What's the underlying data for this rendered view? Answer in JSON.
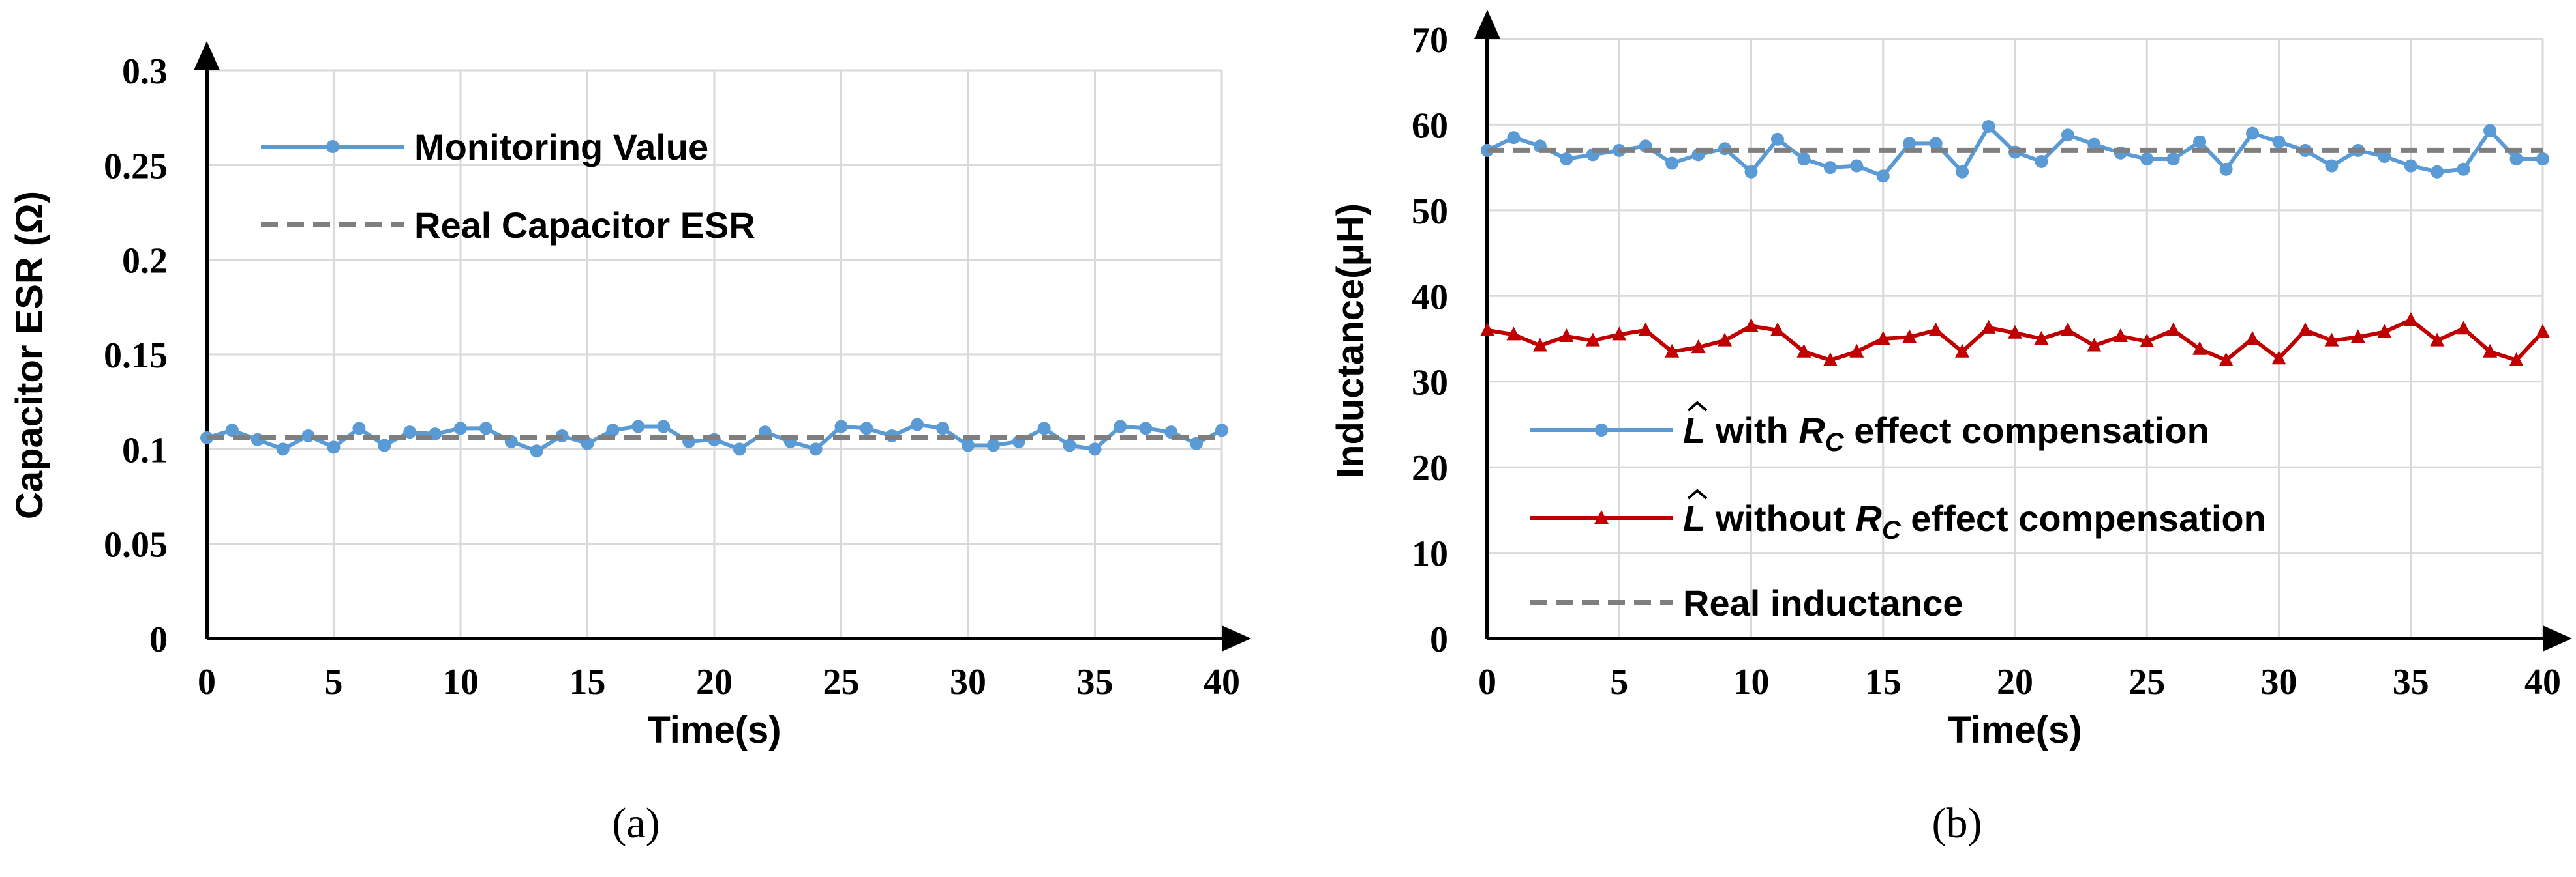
{
  "chart_data": [
    {
      "type": "line",
      "caption": "(a)",
      "xlabel": "Time(s)",
      "ylabel": "Capacitor ESR (Ω)",
      "xlim": [
        0,
        40
      ],
      "ylim": [
        0,
        0.3
      ],
      "x_ticks": [
        0,
        5,
        10,
        15,
        20,
        25,
        30,
        35,
        40
      ],
      "x_tick_labels": [
        "0",
        "5",
        "10",
        "15",
        "20",
        "25",
        "30",
        "35",
        "40"
      ],
      "y_ticks": [
        0,
        0.05,
        0.1,
        0.15,
        0.2,
        0.25,
        0.3
      ],
      "y_tick_labels": [
        "0",
        "0.05",
        "0.1",
        "0.15",
        "0.2",
        "0.25",
        "0.3"
      ],
      "grid": true,
      "legend_position": "top-left",
      "series": [
        {
          "name": "Monitoring Value",
          "color": "#5b9bd5",
          "marker": "circle",
          "x": [
            0,
            1,
            2,
            3,
            4,
            5,
            6,
            7,
            8,
            9,
            10,
            11,
            12,
            13,
            14,
            15,
            16,
            17,
            18,
            19,
            20,
            21,
            22,
            23,
            24,
            25,
            26,
            27,
            28,
            29,
            30,
            31,
            32,
            33,
            34,
            35,
            36,
            37,
            38,
            39,
            40
          ],
          "values": [
            0.106,
            0.11,
            0.105,
            0.1,
            0.107,
            0.101,
            0.111,
            0.102,
            0.109,
            0.108,
            0.111,
            0.111,
            0.104,
            0.099,
            0.107,
            0.103,
            0.11,
            0.112,
            0.112,
            0.104,
            0.105,
            0.1,
            0.109,
            0.104,
            0.1,
            0.112,
            0.111,
            0.107,
            0.113,
            0.111,
            0.102,
            0.102,
            0.104,
            0.111,
            0.102,
            0.1,
            0.112,
            0.111,
            0.109,
            0.103,
            0.11
          ]
        },
        {
          "name": "Real Capacitor ESR",
          "color": "#7f7f7f",
          "dash": true,
          "x": [
            0,
            40
          ],
          "values": [
            0.106,
            0.106
          ]
        }
      ]
    },
    {
      "type": "line",
      "caption": "(b)",
      "xlabel": "Time(s)",
      "ylabel": "Inductance(μH)",
      "xlim": [
        0,
        40
      ],
      "ylim": [
        0,
        70
      ],
      "x_ticks": [
        0,
        5,
        10,
        15,
        20,
        25,
        30,
        35,
        40
      ],
      "x_tick_labels": [
        "0",
        "5",
        "10",
        "15",
        "20",
        "25",
        "30",
        "35",
        "40"
      ],
      "y_ticks": [
        0,
        10,
        20,
        30,
        40,
        50,
        60,
        70
      ],
      "y_tick_labels": [
        "0",
        "10",
        "20",
        "30",
        "40",
        "50",
        "60",
        "70"
      ],
      "grid": true,
      "legend_position": "bottom-left",
      "series": [
        {
          "name": "L̂ with R_C effect compensation",
          "legend_parts": {
            "symbol": "L",
            "mid": "with",
            "sub_symbol": "R",
            "sub": "C",
            "tail": "effect compensation"
          },
          "color": "#5b9bd5",
          "marker": "circle",
          "x": [
            0,
            1,
            2,
            3,
            4,
            5,
            6,
            7,
            8,
            9,
            10,
            11,
            12,
            13,
            14,
            15,
            16,
            17,
            18,
            19,
            20,
            21,
            22,
            23,
            24,
            25,
            26,
            27,
            28,
            29,
            30,
            31,
            32,
            33,
            34,
            35,
            36,
            37,
            38,
            39,
            40
          ],
          "values": [
            57.0,
            58.5,
            57.5,
            56.0,
            56.5,
            57.0,
            57.5,
            55.5,
            56.5,
            57.2,
            54.5,
            58.3,
            56.0,
            55.0,
            55.2,
            54.0,
            57.8,
            57.8,
            54.5,
            59.8,
            56.8,
            55.7,
            58.8,
            57.7,
            56.7,
            56.0,
            56.0,
            58.0,
            54.8,
            59.0,
            58.0,
            57.0,
            55.2,
            57.0,
            56.3,
            55.2,
            54.5,
            54.8,
            59.3,
            56.0,
            56.0
          ]
        },
        {
          "name": "L̂ without R_C effect compensation",
          "legend_parts": {
            "symbol": "L",
            "mid": "without",
            "sub_symbol": "R",
            "sub": "C",
            "tail": "effect compensation"
          },
          "color": "#c00000",
          "marker": "triangle",
          "x": [
            0,
            1,
            2,
            3,
            4,
            5,
            6,
            7,
            8,
            9,
            10,
            11,
            12,
            13,
            14,
            15,
            16,
            17,
            18,
            19,
            20,
            21,
            22,
            23,
            24,
            25,
            26,
            27,
            28,
            29,
            30,
            31,
            32,
            33,
            34,
            35,
            36,
            37,
            38,
            39,
            40
          ],
          "values": [
            36.0,
            35.5,
            34.2,
            35.3,
            34.8,
            35.5,
            36.0,
            33.5,
            34.0,
            34.8,
            36.5,
            36.0,
            33.5,
            32.5,
            33.5,
            35.0,
            35.2,
            36.0,
            33.5,
            36.3,
            35.7,
            35.0,
            36.0,
            34.2,
            35.3,
            34.7,
            36.0,
            33.8,
            32.5,
            35.0,
            32.7,
            36.0,
            34.8,
            35.2,
            35.8,
            37.2,
            34.8,
            36.2,
            33.5,
            32.5,
            35.8
          ]
        },
        {
          "name": "Real inductance",
          "color": "#7f7f7f",
          "dash": true,
          "x": [
            0,
            40
          ],
          "values": [
            57.0,
            57.0
          ]
        }
      ]
    }
  ]
}
